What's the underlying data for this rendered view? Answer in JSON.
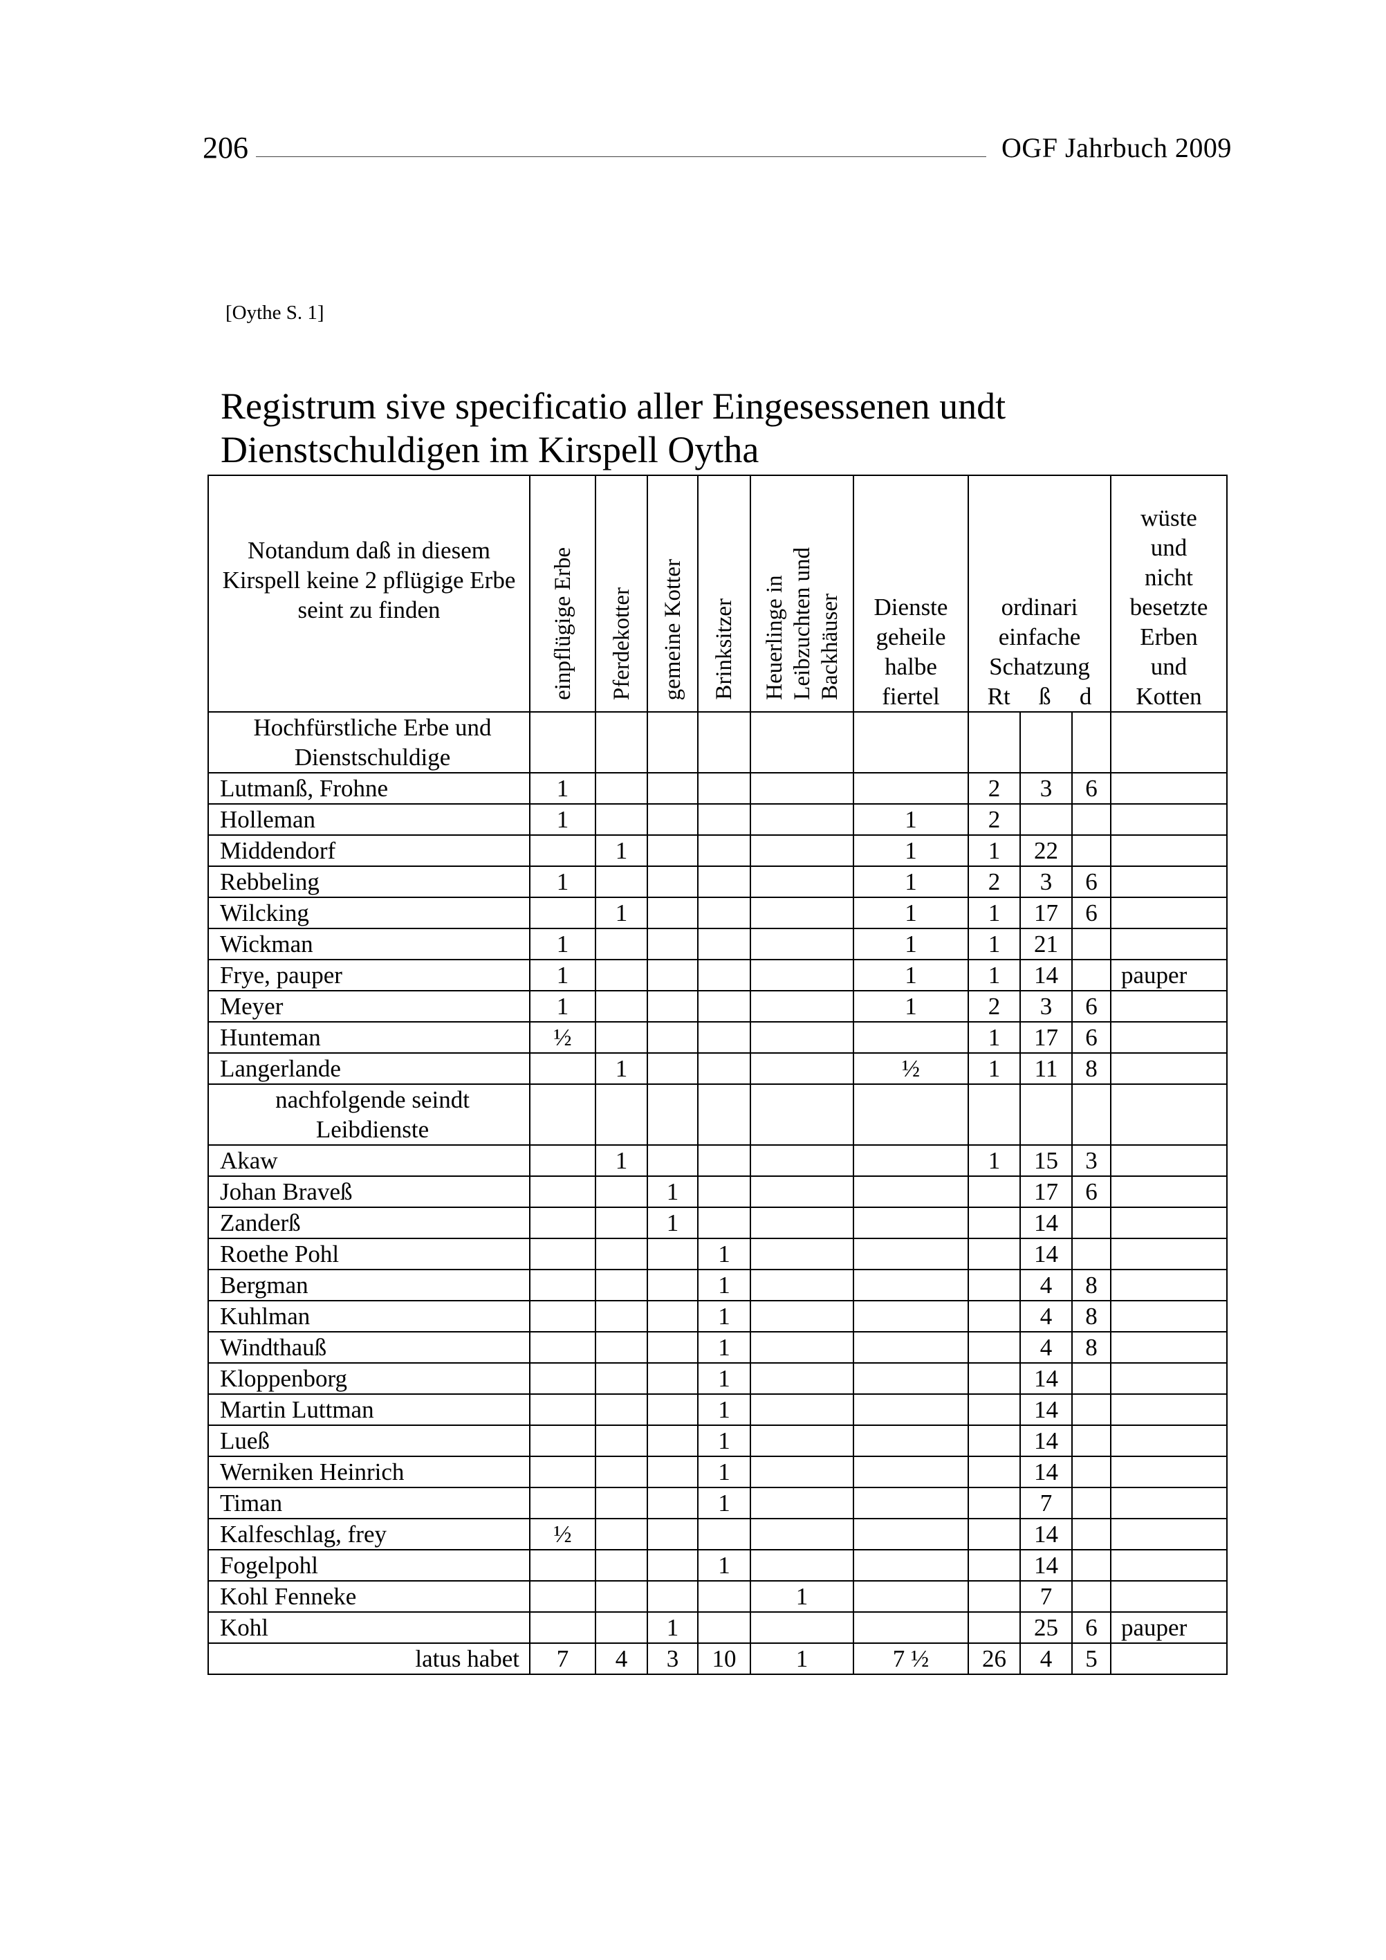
{
  "page_header": {
    "page_number": "206",
    "journal": "OGF Jahrbuch 2009"
  },
  "source_ref": "[Oythe S. 1]",
  "title": [
    "Registrum sive specificatio aller Eingesessenen undt",
    "Dienstschuldigen im Kirspell Oytha"
  ],
  "table": {
    "headers": {
      "note": "Notandum daß in diesem Kirspell keine 2 pflügige Erbe seint zu finden",
      "einpfluegige": "einpflügige Erbe",
      "pferdekotter": "Pferdekotter",
      "gemeine_kotter": "gemeine Kotter",
      "brinksitzer": "Brinksitzer",
      "heuerlinge": [
        "Heuerlinge in",
        "Leibzuchten und",
        "Backhäuser"
      ],
      "dienste": [
        "Dienste",
        "geheile",
        "halbe",
        "fiertel"
      ],
      "schatzung": [
        "ordinari",
        "einfache",
        "Schatzung"
      ],
      "schatzung_units": [
        "Rt",
        "ß",
        "d"
      ],
      "wueste": [
        "wüste",
        "und",
        "nicht",
        "besetzte",
        "Erben",
        "und",
        "Kotten"
      ]
    },
    "rows": [
      {
        "type": "section",
        "name": "Hochfürstliche Erbe und Dienstschuldige",
        "cells": [
          "",
          "",
          "",
          "",
          "",
          "",
          "",
          "",
          "",
          ""
        ]
      },
      {
        "name": "Lutmanß, Frohne",
        "cells": [
          "1",
          "",
          "",
          "",
          "",
          "",
          "2",
          "3",
          "6",
          ""
        ]
      },
      {
        "name": "Holleman",
        "cells": [
          "1",
          "",
          "",
          "",
          "",
          "1",
          "2",
          "",
          "",
          ""
        ]
      },
      {
        "name": "Middendorf",
        "cells": [
          "",
          "1",
          "",
          "",
          "",
          "1",
          "1",
          "22",
          "",
          ""
        ]
      },
      {
        "name": "Rebbeling",
        "cells": [
          "1",
          "",
          "",
          "",
          "",
          "1",
          "2",
          "3",
          "6",
          ""
        ]
      },
      {
        "name": "Wilcking",
        "cells": [
          "",
          "1",
          "",
          "",
          "",
          "1",
          "1",
          "17",
          "6",
          ""
        ]
      },
      {
        "name": "Wickman",
        "cells": [
          "1",
          "",
          "",
          "",
          "",
          "1",
          "1",
          "21",
          "",
          ""
        ]
      },
      {
        "name": "Frye, pauper",
        "cells": [
          "1",
          "",
          "",
          "",
          "",
          "1",
          "1",
          "14",
          "",
          "pauper"
        ]
      },
      {
        "name": "Meyer",
        "cells": [
          "1",
          "",
          "",
          "",
          "",
          "1",
          "2",
          "3",
          "6",
          ""
        ]
      },
      {
        "name": "Hunteman",
        "cells": [
          "½",
          "",
          "",
          "",
          "",
          "",
          "1",
          "17",
          "6",
          ""
        ]
      },
      {
        "name": "Langerlande",
        "cells": [
          "",
          "1",
          "",
          "",
          "",
          "½",
          "1",
          "11",
          "8",
          ""
        ]
      },
      {
        "type": "section",
        "name": "nachfolgende seindt Leibdienste",
        "cells": [
          "",
          "",
          "",
          "",
          "",
          "",
          "",
          "",
          "",
          ""
        ]
      },
      {
        "name": "Akaw",
        "cells": [
          "",
          "1",
          "",
          "",
          "",
          "",
          "1",
          "15",
          "3",
          ""
        ]
      },
      {
        "name": "Johan Braveß",
        "cells": [
          "",
          "",
          "1",
          "",
          "",
          "",
          "",
          "17",
          "6",
          ""
        ]
      },
      {
        "name": "Zanderß",
        "cells": [
          "",
          "",
          "1",
          "",
          "",
          "",
          "",
          "14",
          "",
          ""
        ]
      },
      {
        "name": "Roethe Pohl",
        "cells": [
          "",
          "",
          "",
          "1",
          "",
          "",
          "",
          "14",
          "",
          ""
        ]
      },
      {
        "name": "Bergman",
        "cells": [
          "",
          "",
          "",
          "1",
          "",
          "",
          "",
          "4",
          "8",
          ""
        ]
      },
      {
        "name": "Kuhlman",
        "cells": [
          "",
          "",
          "",
          "1",
          "",
          "",
          "",
          "4",
          "8",
          ""
        ]
      },
      {
        "name": "Windthauß",
        "cells": [
          "",
          "",
          "",
          "1",
          "",
          "",
          "",
          "4",
          "8",
          ""
        ]
      },
      {
        "name": "Kloppenborg",
        "cells": [
          "",
          "",
          "",
          "1",
          "",
          "",
          "",
          "14",
          "",
          ""
        ]
      },
      {
        "name": "Martin Luttman",
        "cells": [
          "",
          "",
          "",
          "1",
          "",
          "",
          "",
          "14",
          "",
          ""
        ]
      },
      {
        "name": "Lueß",
        "cells": [
          "",
          "",
          "",
          "1",
          "",
          "",
          "",
          "14",
          "",
          ""
        ]
      },
      {
        "name": "Werniken Heinrich",
        "cells": [
          "",
          "",
          "",
          "1",
          "",
          "",
          "",
          "14",
          "",
          ""
        ]
      },
      {
        "name": "Timan",
        "cells": [
          "",
          "",
          "",
          "1",
          "",
          "",
          "",
          "7",
          "",
          ""
        ]
      },
      {
        "name": "Kalfeschlag, frey",
        "cells": [
          "½",
          "",
          "",
          "",
          "",
          "",
          "",
          "14",
          "",
          ""
        ]
      },
      {
        "name": "Fogelpohl",
        "cells": [
          "",
          "",
          "",
          "1",
          "",
          "",
          "",
          "14",
          "",
          ""
        ]
      },
      {
        "name": "Kohl Fenneke",
        "cells": [
          "",
          "",
          "",
          "",
          "1",
          "",
          "",
          "7",
          "",
          ""
        ]
      },
      {
        "name": "Kohl",
        "cells": [
          "",
          "",
          "1",
          "",
          "",
          "",
          "",
          "25",
          "6",
          "pauper"
        ]
      },
      {
        "type": "total",
        "name": "latus habet",
        "cells": [
          "7",
          "4",
          "3",
          "10",
          "1",
          "7 ½",
          "26",
          "4",
          "5",
          ""
        ]
      }
    ]
  }
}
